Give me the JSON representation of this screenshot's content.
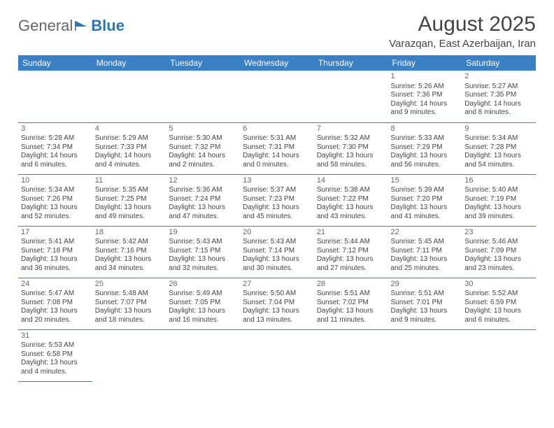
{
  "logo": {
    "text1": "General",
    "text2": "Blue"
  },
  "title": "August 2025",
  "location": "Varazqan, East Azerbaijan, Iran",
  "colors": {
    "headerBg": "#3b7fc4",
    "headerText": "#ffffff",
    "border": "#3b7fc4",
    "text": "#444444",
    "logoGray": "#666666",
    "logoBlue": "#2e74b5"
  },
  "weekdays": [
    "Sunday",
    "Monday",
    "Tuesday",
    "Wednesday",
    "Thursday",
    "Friday",
    "Saturday"
  ],
  "startOffset": 5,
  "days": [
    {
      "n": "1",
      "sr": "5:26 AM",
      "ss": "7:36 PM",
      "dl": "14 hours and 9 minutes."
    },
    {
      "n": "2",
      "sr": "5:27 AM",
      "ss": "7:35 PM",
      "dl": "14 hours and 8 minutes."
    },
    {
      "n": "3",
      "sr": "5:28 AM",
      "ss": "7:34 PM",
      "dl": "14 hours and 6 minutes."
    },
    {
      "n": "4",
      "sr": "5:29 AM",
      "ss": "7:33 PM",
      "dl": "14 hours and 4 minutes."
    },
    {
      "n": "5",
      "sr": "5:30 AM",
      "ss": "7:32 PM",
      "dl": "14 hours and 2 minutes."
    },
    {
      "n": "6",
      "sr": "5:31 AM",
      "ss": "7:31 PM",
      "dl": "14 hours and 0 minutes."
    },
    {
      "n": "7",
      "sr": "5:32 AM",
      "ss": "7:30 PM",
      "dl": "13 hours and 58 minutes."
    },
    {
      "n": "8",
      "sr": "5:33 AM",
      "ss": "7:29 PM",
      "dl": "13 hours and 56 minutes."
    },
    {
      "n": "9",
      "sr": "5:34 AM",
      "ss": "7:28 PM",
      "dl": "13 hours and 54 minutes."
    },
    {
      "n": "10",
      "sr": "5:34 AM",
      "ss": "7:26 PM",
      "dl": "13 hours and 52 minutes."
    },
    {
      "n": "11",
      "sr": "5:35 AM",
      "ss": "7:25 PM",
      "dl": "13 hours and 49 minutes."
    },
    {
      "n": "12",
      "sr": "5:36 AM",
      "ss": "7:24 PM",
      "dl": "13 hours and 47 minutes."
    },
    {
      "n": "13",
      "sr": "5:37 AM",
      "ss": "7:23 PM",
      "dl": "13 hours and 45 minutes."
    },
    {
      "n": "14",
      "sr": "5:38 AM",
      "ss": "7:22 PM",
      "dl": "13 hours and 43 minutes."
    },
    {
      "n": "15",
      "sr": "5:39 AM",
      "ss": "7:20 PM",
      "dl": "13 hours and 41 minutes."
    },
    {
      "n": "16",
      "sr": "5:40 AM",
      "ss": "7:19 PM",
      "dl": "13 hours and 39 minutes."
    },
    {
      "n": "17",
      "sr": "5:41 AM",
      "ss": "7:18 PM",
      "dl": "13 hours and 36 minutes."
    },
    {
      "n": "18",
      "sr": "5:42 AM",
      "ss": "7:16 PM",
      "dl": "13 hours and 34 minutes."
    },
    {
      "n": "19",
      "sr": "5:43 AM",
      "ss": "7:15 PM",
      "dl": "13 hours and 32 minutes."
    },
    {
      "n": "20",
      "sr": "5:43 AM",
      "ss": "7:14 PM",
      "dl": "13 hours and 30 minutes."
    },
    {
      "n": "21",
      "sr": "5:44 AM",
      "ss": "7:12 PM",
      "dl": "13 hours and 27 minutes."
    },
    {
      "n": "22",
      "sr": "5:45 AM",
      "ss": "7:11 PM",
      "dl": "13 hours and 25 minutes."
    },
    {
      "n": "23",
      "sr": "5:46 AM",
      "ss": "7:09 PM",
      "dl": "13 hours and 23 minutes."
    },
    {
      "n": "24",
      "sr": "5:47 AM",
      "ss": "7:08 PM",
      "dl": "13 hours and 20 minutes."
    },
    {
      "n": "25",
      "sr": "5:48 AM",
      "ss": "7:07 PM",
      "dl": "13 hours and 18 minutes."
    },
    {
      "n": "26",
      "sr": "5:49 AM",
      "ss": "7:05 PM",
      "dl": "13 hours and 16 minutes."
    },
    {
      "n": "27",
      "sr": "5:50 AM",
      "ss": "7:04 PM",
      "dl": "13 hours and 13 minutes."
    },
    {
      "n": "28",
      "sr": "5:51 AM",
      "ss": "7:02 PM",
      "dl": "13 hours and 11 minutes."
    },
    {
      "n": "29",
      "sr": "5:51 AM",
      "ss": "7:01 PM",
      "dl": "13 hours and 9 minutes."
    },
    {
      "n": "30",
      "sr": "5:52 AM",
      "ss": "6:59 PM",
      "dl": "13 hours and 6 minutes."
    },
    {
      "n": "31",
      "sr": "5:53 AM",
      "ss": "6:58 PM",
      "dl": "13 hours and 4 minutes."
    }
  ],
  "labels": {
    "sunrise": "Sunrise: ",
    "sunset": "Sunset: ",
    "daylight": "Daylight: "
  }
}
